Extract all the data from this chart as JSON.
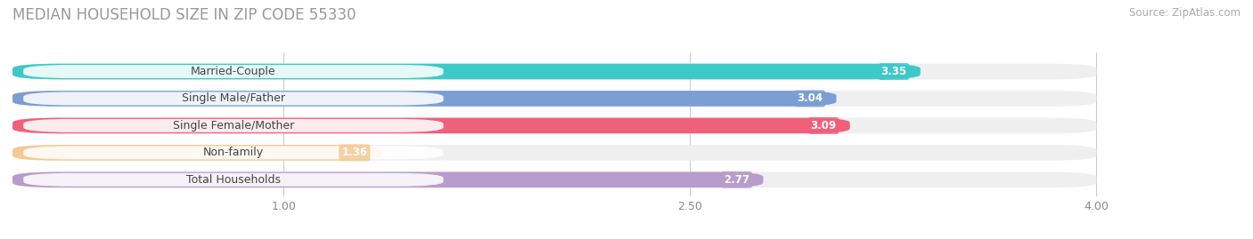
{
  "title": "MEDIAN HOUSEHOLD SIZE IN ZIP CODE 55330",
  "source": "Source: ZipAtlas.com",
  "categories": [
    "Married-Couple",
    "Single Male/Father",
    "Single Female/Mother",
    "Non-family",
    "Total Households"
  ],
  "values": [
    3.35,
    3.04,
    3.09,
    1.36,
    2.77
  ],
  "bar_colors": [
    "#3ec8c8",
    "#7b9fd4",
    "#f0607a",
    "#f5c992",
    "#b89ccc"
  ],
  "xlim_data": [
    0.0,
    4.3
  ],
  "xlim_display": [
    0.0,
    4.0
  ],
  "xticks": [
    1.0,
    2.5,
    4.0
  ],
  "title_fontsize": 12,
  "source_fontsize": 8.5,
  "label_fontsize": 9,
  "value_fontsize": 8.5,
  "bar_height": 0.58,
  "bg_bar_color": "#efefef"
}
